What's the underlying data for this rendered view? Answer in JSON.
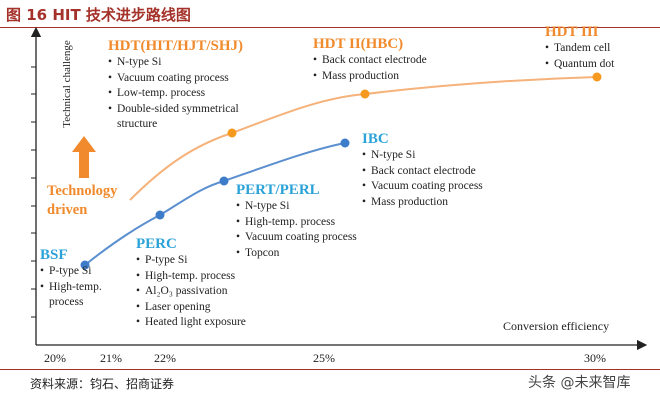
{
  "header": {
    "title": "图 16 HIT 技术进步路线图"
  },
  "axes": {
    "y_label": "Technical challenge",
    "x_label": "Conversion efficiency",
    "x_ticks": [
      "20%",
      "21%",
      "22%",
      "25%",
      "30%"
    ]
  },
  "driver": [
    "Technology",
    "driven"
  ],
  "nodes": [
    {
      "label": "HDT(HIT/HJT/SHJ)",
      "items": [
        "N-type Si",
        "Vacuum coating process",
        "Low-temp. process",
        "Double-sided symmetrical structure"
      ]
    },
    {
      "label": "HDT II(HBC)",
      "items": [
        "Back contact electrode",
        "Mass production"
      ]
    },
    {
      "label": "HDT III",
      "items": [
        "Tandem cell",
        "Quantum dot"
      ]
    },
    {
      "label": "BSF",
      "items": [
        "P-type Si",
        "High-temp. process"
      ]
    },
    {
      "label": "PERC",
      "items": [
        "P-type Si",
        "High-temp. process",
        "Al₂O₃ passivation",
        "Laser opening",
        "Heated light exposure"
      ]
    },
    {
      "label": "PERT/PERL",
      "items": [
        "N-type Si",
        "High-temp. process",
        "Vacuum coating process",
        "Topcon"
      ]
    },
    {
      "label": "IBC",
      "items": [
        "N-type Si",
        "Back contact electrode",
        "Vacuum coating process",
        "Mass production"
      ]
    }
  ],
  "footer": {
    "source": "资料来源：钧石、招商证券",
    "watermark": "头条 @未来智库"
  }
}
